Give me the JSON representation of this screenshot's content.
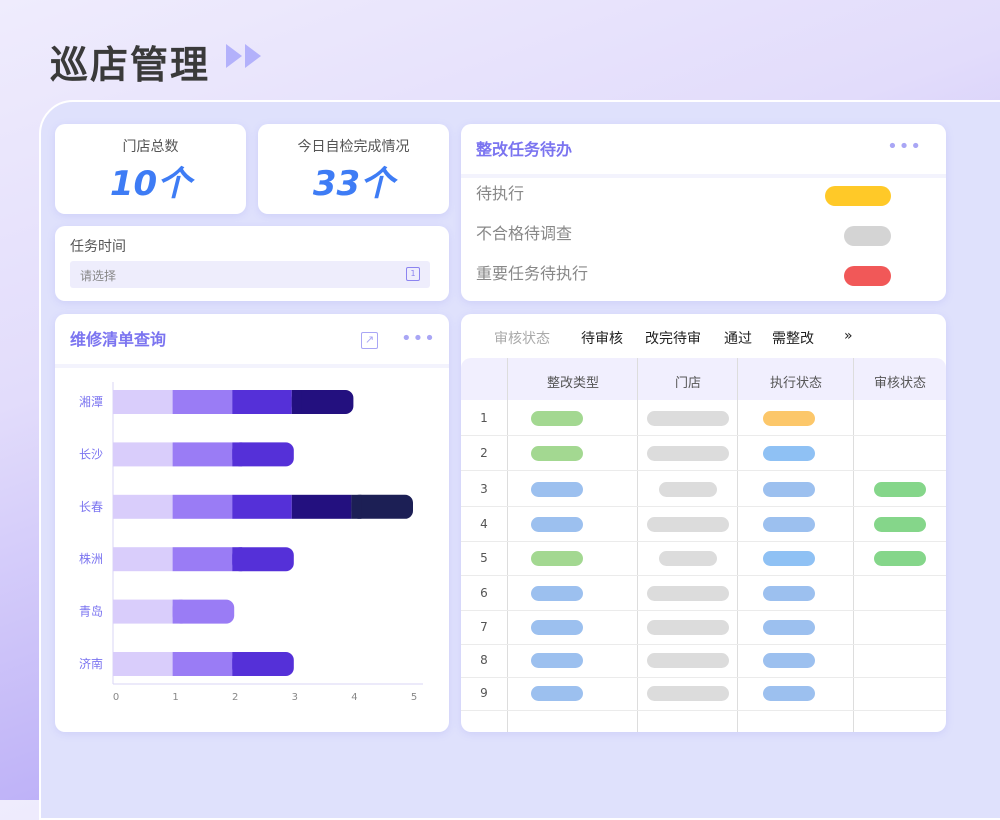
{
  "page_title": "巡店管理",
  "stats": [
    {
      "label": "门店总数",
      "value": "10个"
    },
    {
      "label": "今日自检完成情况",
      "value": "33个"
    }
  ],
  "task_time": {
    "label": "任务时间",
    "placeholder": "请选择"
  },
  "todo": {
    "title": "整改任务待办",
    "items": [
      {
        "label": "待执行",
        "color": "#ffc928"
      },
      {
        "label": "不合格待调查",
        "color": "#d4d4d4"
      },
      {
        "label": "重要任务待执行",
        "color": "#f15858"
      }
    ]
  },
  "repair": {
    "title": "维修清单查询"
  },
  "chart_data": {
    "type": "bar",
    "orientation": "horizontal",
    "stacked": true,
    "categories": [
      "湘潭",
      "长沙",
      "长春",
      "株洲",
      "青岛",
      "济南"
    ],
    "values": [
      4,
      3,
      5,
      3,
      2,
      3
    ],
    "segment_colors": [
      "#d9cdfb",
      "#9a7cf5",
      "#5530d8",
      "#23107f",
      "#1c1f55"
    ],
    "xlim": [
      0,
      5
    ],
    "xticks": [
      "0",
      "1",
      "2",
      "3",
      "4",
      "5"
    ]
  },
  "table": {
    "filter_label": "审核状态",
    "filters": [
      "待审核",
      "改完待审",
      "通过",
      "需整改"
    ],
    "more": "»",
    "columns": [
      "整改类型",
      "门店",
      "执行状态",
      "审核状态"
    ],
    "rows": [
      {
        "n": "1",
        "type": "#a3d891",
        "store": "long",
        "exec": "#fcc76a",
        "audit": ""
      },
      {
        "n": "2",
        "type": "#a3d891",
        "store": "long",
        "exec": "#8fc1f4",
        "audit": ""
      },
      {
        "n": "3",
        "type": "#9cc0ef",
        "store": "short",
        "exec": "#9cc0ef",
        "audit": "#85d68a"
      },
      {
        "n": "4",
        "type": "#9cc0ef",
        "store": "long",
        "exec": "#9cc0ef",
        "audit": "#85d68a"
      },
      {
        "n": "5",
        "type": "#a3d891",
        "store": "short",
        "exec": "#8fc1f4",
        "audit": "#85d68a"
      },
      {
        "n": "6",
        "type": "#9cc0ef",
        "store": "long",
        "exec": "#9cc0ef",
        "audit": ""
      },
      {
        "n": "7",
        "type": "#9cc0ef",
        "store": "long",
        "exec": "#9cc0ef",
        "audit": ""
      },
      {
        "n": "8",
        "type": "#9cc0ef",
        "store": "long",
        "exec": "#9cc0ef",
        "audit": ""
      },
      {
        "n": "9",
        "type": "#9cc0ef",
        "store": "long",
        "exec": "#9cc0ef",
        "audit": ""
      }
    ]
  }
}
